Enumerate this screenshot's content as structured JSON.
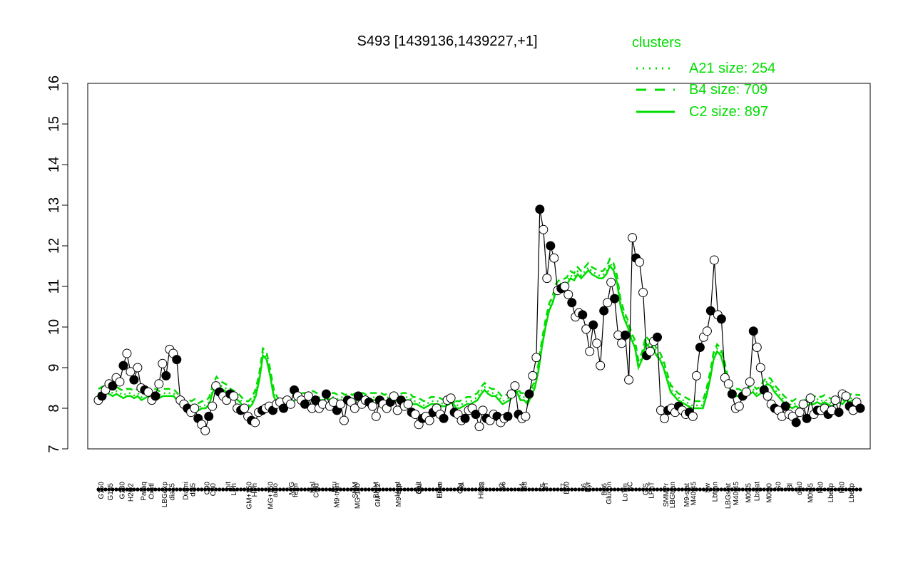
{
  "chart_data": {
    "type": "line",
    "title": "S493 [1439136,1439227,+1]",
    "ylim": [
      7,
      16
    ],
    "yticks": [
      7,
      8,
      9,
      10,
      11,
      12,
      13,
      14,
      15,
      16
    ],
    "legend": {
      "title": "clusters",
      "placement": "top-right",
      "entries": [
        {
          "label": "A21 size: 254",
          "style": "dotted",
          "color": "#00dd00"
        },
        {
          "label": "B4 size: 709",
          "style": "dashed",
          "color": "#00dd00"
        },
        {
          "label": "C2 size: 897",
          "style": "solid",
          "color": "#00dd00"
        }
      ]
    },
    "x_tick_labels_bottom": [
      "G150",
      "G180",
      "Paraq",
      "LBGexp",
      "Diami",
      "C90",
      "nit",
      "GM+150",
      "MG+150",
      "M/G",
      "Mal",
      "Fru",
      "SMM",
      "BMM",
      "Heat",
      "Salt",
      "HiTm",
      "S1",
      "S3",
      "S6",
      "S8",
      "BT",
      "B60",
      "Pyr",
      "Glucon",
      "BC",
      "LPhT",
      "LBGtran",
      "M40t45",
      "Lbtran",
      "M40t45",
      "Lbstat",
      "S0",
      "dia0",
      "Mt0",
      "Mt0"
    ],
    "x_tick_labels_top": [
      "G135",
      "H2O2",
      "Oxctl",
      "dia15",
      "dia5",
      "C30",
      "LPh",
      "HPh",
      "aero",
      "ferm",
      "Cold",
      "M9-tran",
      "MG-120",
      "GM-0.2",
      "M9-exp",
      "Glu",
      "Etha",
      "Gly",
      "HiOs",
      "S2",
      "S4",
      "S5",
      "S7",
      "S6",
      "B36",
      "LoTm",
      "G/S",
      "SMMPr",
      "M9-stat",
      "Sw",
      "LBGstat",
      "M0t45",
      "M0t90",
      "Bl",
      "M0t45",
      "Lbexp",
      "Lbexp"
    ],
    "series": [
      {
        "values": [
          8.2,
          8.3,
          8.45,
          8.6,
          8.55,
          8.75,
          8.65,
          9.05,
          9.35,
          8.9,
          8.7,
          9.0,
          8.5,
          8.45,
          8.4,
          8.2,
          8.3,
          8.6,
          9.1,
          8.8,
          9.45,
          9.35,
          9.2,
          8.2,
          8.1,
          8.0,
          7.9,
          8.0,
          7.75,
          7.6,
          7.45,
          7.8,
          8.05,
          8.55,
          8.4,
          8.3,
          8.2,
          8.35,
          8.3,
          8.0,
          7.95,
          8.0,
          7.8,
          7.7,
          7.65,
          7.9,
          7.95,
          8.0,
          8.05,
          7.95,
          8.1,
          8.15,
          8.0,
          8.2,
          8.1,
          8.45,
          8.3,
          8.2,
          8.1,
          8.3,
          8.0,
          8.2,
          8.0,
          8.1,
          8.35,
          8.05,
          8.15,
          7.95,
          8.1,
          7.7,
          8.2,
          8.15,
          8.0,
          8.3,
          8.1,
          8.2,
          8.15,
          8.05,
          7.8,
          8.2,
          8.1,
          8.0,
          8.15,
          8.3,
          7.95,
          8.2,
          8.05,
          8.1,
          7.9,
          7.85,
          7.6,
          7.75,
          7.8,
          7.7,
          7.9,
          8.0,
          7.85,
          7.75,
          8.2,
          8.25,
          7.9,
          7.85,
          7.7,
          7.75,
          7.95,
          8.0,
          7.85,
          7.55,
          7.95,
          7.75,
          7.7,
          7.85,
          7.8,
          7.65,
          7.75,
          7.8,
          8.35,
          8.55,
          7.85,
          7.75,
          7.8,
          8.35,
          8.8,
          9.25,
          12.9,
          12.4,
          11.2,
          12.0,
          11.7,
          10.9,
          10.95,
          11.0,
          10.8,
          10.6,
          10.25,
          10.35,
          10.3,
          9.95,
          9.4,
          10.05,
          9.6,
          9.05,
          10.4,
          10.6,
          11.1,
          10.7,
          9.8,
          9.6,
          9.8,
          8.7,
          12.2,
          11.7,
          11.6,
          10.85,
          9.3,
          9.4,
          9.65,
          9.75,
          7.95,
          7.75,
          7.95,
          8.0,
          7.9,
          8.05,
          7.95,
          7.85,
          7.9,
          7.8,
          8.8,
          9.5,
          9.75,
          9.9,
          10.4,
          11.65,
          10.3,
          10.2,
          8.75,
          8.6,
          8.35,
          8.0,
          8.05,
          8.3,
          8.4,
          8.65,
          9.9,
          9.5,
          9.0,
          8.45,
          8.3,
          8.1,
          8.0,
          7.95,
          7.8,
          8.05,
          7.85,
          7.8,
          7.65,
          7.9,
          8.1,
          7.75,
          8.25,
          7.85,
          7.95,
          7.95,
          8.0,
          7.85,
          7.95,
          8.2,
          7.9,
          8.35,
          8.3,
          8.05,
          7.95,
          8.15,
          8.0
        ]
      },
      {
        "name": "C2 size: 897",
        "values": [
          8.3,
          8.35,
          8.4,
          8.35,
          8.3,
          8.35,
          8.3,
          8.25,
          8.3,
          8.3,
          8.25,
          8.3,
          8.2,
          8.25,
          8.3,
          8.3,
          8.3,
          8.25,
          8.3,
          8.3,
          8.3,
          8.3,
          8.2,
          8.1,
          8.0,
          8.05,
          8.0,
          8.05,
          7.95,
          8.0,
          8.0,
          8.1,
          8.4,
          8.6,
          8.5,
          8.45,
          8.4,
          8.3,
          8.25,
          8.2,
          8.1,
          8.0,
          8.0,
          8.1,
          8.3,
          8.7,
          9.3,
          9.2,
          8.8,
          8.3,
          8.1,
          8.0,
          8.05,
          8.1,
          8.15,
          8.2,
          8.25,
          8.2,
          8.2,
          8.2,
          8.25,
          8.2,
          8.2,
          8.2,
          8.25,
          8.2,
          8.2,
          8.15,
          8.2,
          8.15,
          8.2,
          8.15,
          8.2,
          8.2,
          8.2,
          8.15,
          8.2,
          8.2,
          8.2,
          8.2,
          8.15,
          8.2,
          8.2,
          8.2,
          8.15,
          8.2,
          8.2,
          8.2,
          8.1,
          8.1,
          8.05,
          8.0,
          8.05,
          8.1,
          8.1,
          8.1,
          8.05,
          8.05,
          8.1,
          8.15,
          8.0,
          8.0,
          8.05,
          8.1,
          8.1,
          8.15,
          8.2,
          8.35,
          8.45,
          8.35,
          8.3,
          8.3,
          8.2,
          8.1,
          8.15,
          8.2,
          8.3,
          8.4,
          8.2,
          8.2,
          8.1,
          8.3,
          8.5,
          8.9,
          9.5,
          10.0,
          10.4,
          10.6,
          10.9,
          11.0,
          11.0,
          11.05,
          11.2,
          11.15,
          11.3,
          11.2,
          11.3,
          11.4,
          11.3,
          11.25,
          11.2,
          11.2,
          11.3,
          11.5,
          11.4,
          11.1,
          10.5,
          10.2,
          10.0,
          9.7,
          9.5,
          9.0,
          9.2,
          9.6,
          9.5,
          9.5,
          9.3,
          9.2,
          9.0,
          8.7,
          8.4,
          8.3,
          8.2,
          8.15,
          8.1,
          8.05,
          8.0,
          8.0,
          8.0,
          8.0,
          8.3,
          8.7,
          9.2,
          9.4,
          9.3,
          9.0,
          8.6,
          8.4,
          8.3,
          8.3,
          8.25,
          8.3,
          8.35,
          8.4,
          8.3,
          8.35,
          8.5,
          8.6,
          8.55,
          8.4,
          8.3,
          8.2,
          8.1,
          8.05,
          8.0,
          8.05,
          8.0,
          8.0,
          8.05,
          8.1,
          8.1,
          8.15,
          8.1,
          8.15,
          8.1,
          8.05,
          8.1,
          8.15,
          8.1,
          8.2,
          8.15,
          8.2,
          8.15,
          8.15
        ]
      }
    ]
  }
}
